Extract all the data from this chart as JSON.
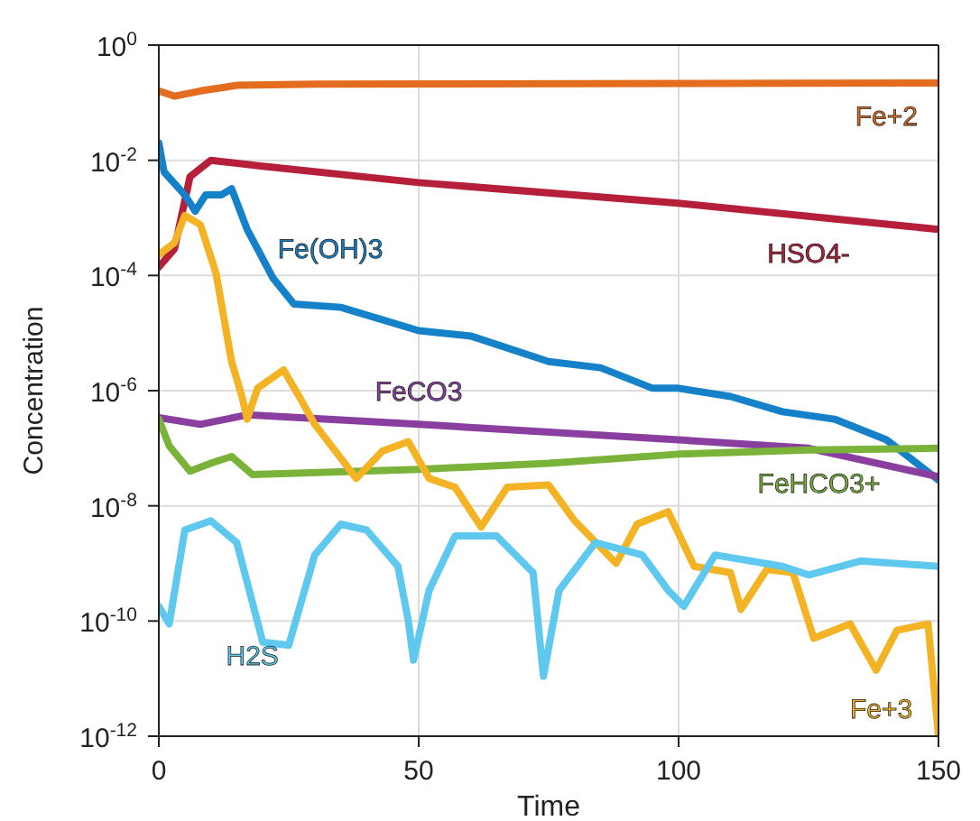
{
  "chart_data": {
    "type": "line",
    "xlabel": "Time",
    "ylabel": "Concentration",
    "log": true,
    "grid": true,
    "legend": false,
    "xlim": [
      0,
      150
    ],
    "xticks": [
      0,
      50,
      100,
      150
    ],
    "ylim": [
      1e-12,
      1
    ],
    "yticks": [
      {
        "value": 1,
        "label": "10$^{0}$"
      },
      {
        "value": 0.01,
        "label": "10$^{-2}$"
      },
      {
        "value": 0.0001,
        "label": "10$^{-4}$"
      },
      {
        "value": 1e-06,
        "label": "10$^{-6}$"
      },
      {
        "value": 1e-08,
        "label": "10$^{-8}$"
      },
      {
        "value": 1e-10,
        "label": "10$^{-10}$"
      },
      {
        "value": 1e-12,
        "label": "10$^{-12}$"
      }
    ],
    "series": [
      {
        "name": "Fe+2",
        "color": "#e36c1e",
        "x": [
          0,
          3,
          8,
          15,
          30,
          150
        ],
        "values": [
          0.16,
          0.13,
          0.16,
          0.2,
          0.21,
          0.22
        ]
      },
      {
        "name": "HSO4-",
        "color": "#b51f3a",
        "x": [
          0,
          3,
          6,
          10,
          20,
          50,
          100,
          150
        ],
        "values": [
          0.00014,
          0.00029,
          0.0052,
          0.01,
          0.0079,
          0.0041,
          0.0018,
          0.00063
        ]
      },
      {
        "name": "Fe(OH)3",
        "color": "#1481c8",
        "x": [
          0,
          1,
          5,
          7,
          9,
          12,
          14,
          17,
          22,
          26,
          35,
          50,
          60,
          75,
          85,
          95,
          100,
          110,
          120,
          130,
          140,
          150
        ],
        "values": [
          0.02,
          0.0063,
          0.0025,
          0.0013,
          0.0025,
          0.0025,
          0.0032,
          0.00063,
          8.9e-05,
          3.2e-05,
          2.8e-05,
          1.1e-05,
          8.9e-06,
          3.2e-06,
          2.5e-06,
          1.1e-06,
          1.1e-06,
          7.9e-07,
          4.3e-07,
          3.2e-07,
          1.4e-07,
          2.8e-08
        ]
      },
      {
        "name": "FeCO3",
        "color": "#8a3fa0",
        "x": [
          0,
          8,
          17,
          50,
          100,
          125,
          150
        ],
        "values": [
          3.4e-07,
          2.6e-07,
          3.8e-07,
          2.6e-07,
          1.4e-07,
          1e-07,
          3.2e-08
        ]
      },
      {
        "name": "FeHCO3+",
        "color": "#7ab33a",
        "x": [
          0,
          2,
          6,
          10,
          14,
          18,
          50,
          75,
          100,
          125,
          150
        ],
        "values": [
          3.2e-07,
          1.1e-07,
          4e-08,
          5.5e-08,
          7.2e-08,
          3.5e-08,
          4.3e-08,
          5.5e-08,
          7.9e-08,
          9.3e-08,
          1e-07
        ]
      },
      {
        "name": "Fe+3",
        "color": "#f4b324",
        "x": [
          0,
          3,
          5,
          8,
          11,
          14,
          16,
          17,
          19,
          24,
          27,
          30,
          38,
          43,
          48,
          52,
          57,
          62,
          67,
          75,
          80,
          88,
          92,
          98,
          103,
          110,
          112,
          117,
          122,
          126,
          133,
          138,
          142,
          148,
          150
        ],
        "values": [
          0.00023,
          0.00037,
          0.0011,
          0.00076,
          0.00011,
          3.2e-06,
          7.9e-07,
          3.2e-07,
          1.1e-06,
          2.3e-06,
          7.9e-07,
          2.6e-07,
          3e-08,
          8.9e-08,
          1.3e-07,
          3e-08,
          2.1e-08,
          4.3e-09,
          2.1e-08,
          2.3e-08,
          5.5e-09,
          1e-09,
          4.8e-09,
          7.9e-09,
          8.9e-10,
          6.9e-10,
          1.6e-10,
          7.9e-10,
          6.9e-10,
          5e-11,
          8.9e-11,
          1.4e-11,
          6.9e-11,
          8.9e-11,
          1e-12
        ]
      },
      {
        "name": "H2S",
        "color": "#5ec8ee",
        "x": [
          0,
          2,
          5,
          10,
          15,
          20,
          25,
          30,
          35,
          40,
          46,
          48,
          49,
          52,
          57,
          65,
          72,
          74,
          77,
          84,
          93,
          98,
          101,
          107,
          120,
          125,
          135,
          150
        ],
        "values": [
          1.8e-10,
          8.9e-11,
          3.8e-09,
          5.5e-09,
          2.3e-09,
          4.3e-11,
          3.8e-11,
          1.4e-09,
          4.8e-09,
          3.8e-09,
          8.9e-10,
          1e-10,
          2.1e-11,
          3.4e-10,
          3e-09,
          3e-09,
          6.9e-10,
          1.1e-11,
          3.4e-10,
          2.3e-09,
          1.4e-09,
          3.4e-10,
          1.8e-10,
          1.4e-09,
          8.9e-10,
          6.3e-10,
          1.1e-09,
          8.9e-10
        ]
      }
    ]
  }
}
